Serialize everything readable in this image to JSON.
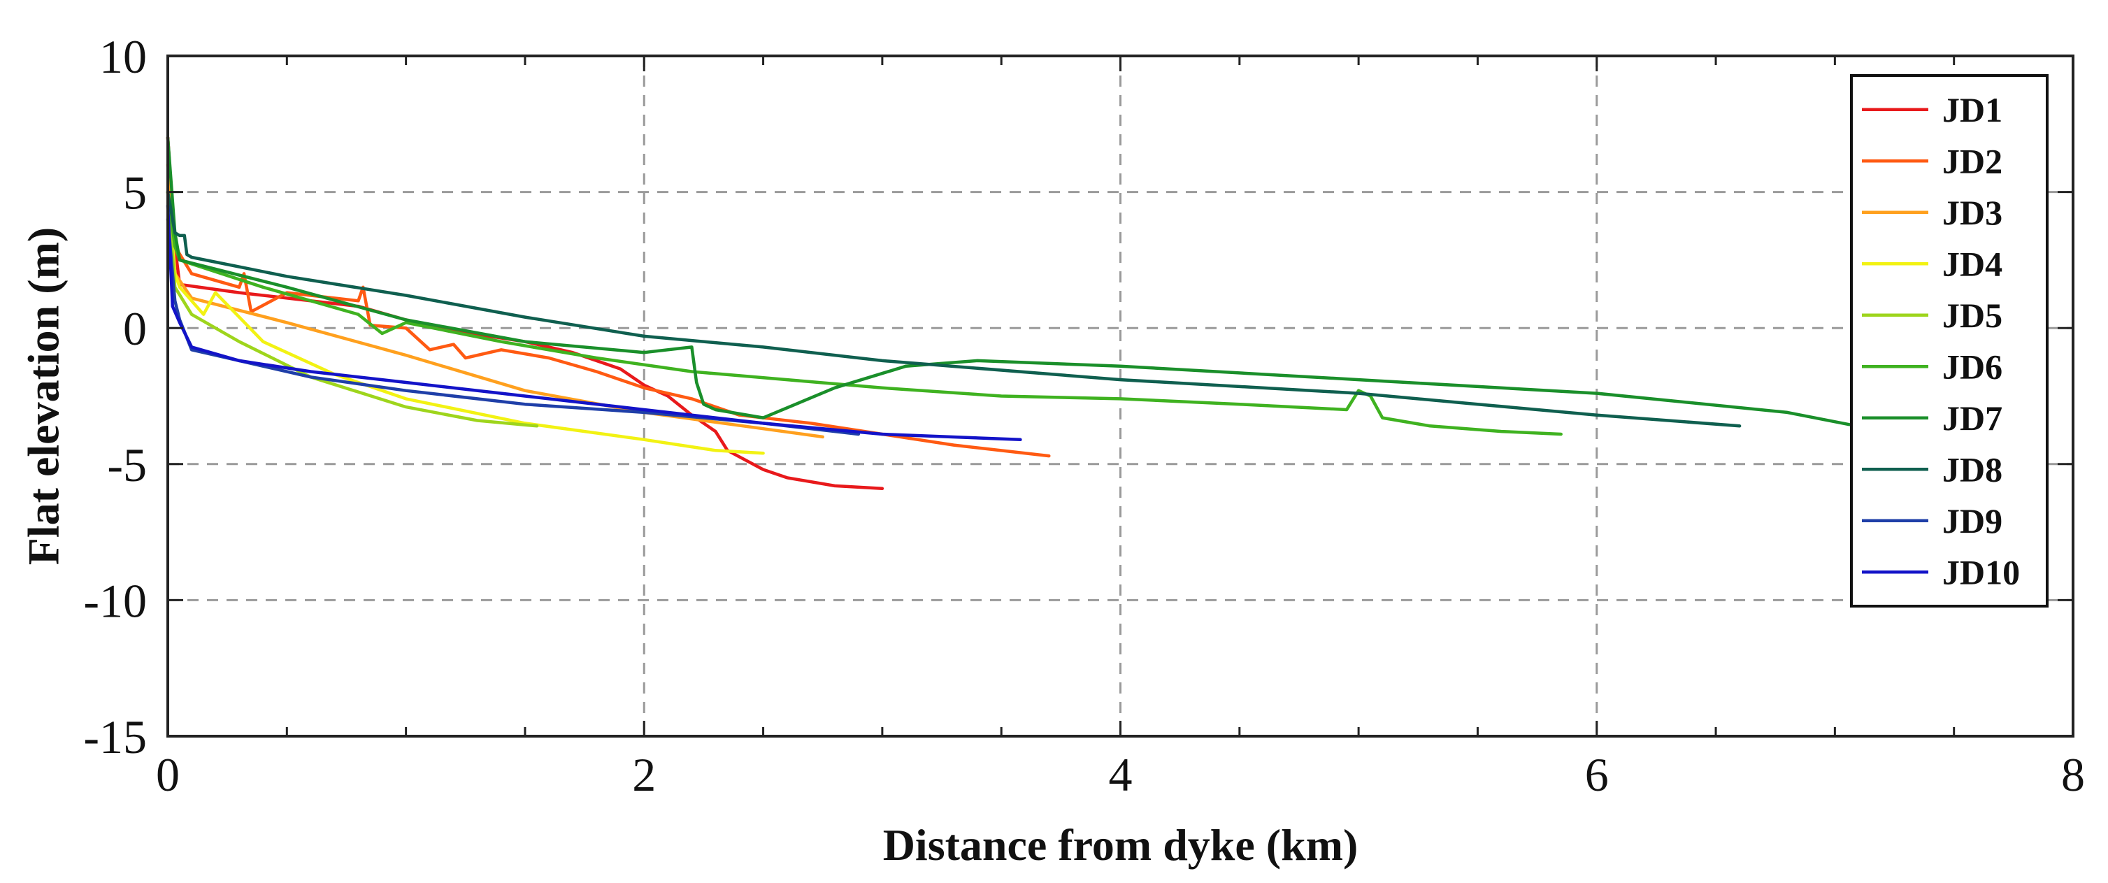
{
  "chart_data": {
    "type": "line",
    "title": "",
    "xlabel": "Distance from dyke (km)",
    "ylabel": "Flat elevation (m)",
    "xlim": [
      0,
      8
    ],
    "ylim": [
      -15,
      10
    ],
    "xticks": [
      0,
      2,
      4,
      6,
      8
    ],
    "xminor_step": 0.5,
    "yticks": [
      10,
      5,
      0,
      -5,
      -10,
      -15
    ],
    "grid": true,
    "legend_position": "top-right",
    "series": [
      {
        "name": "JD1",
        "color": "#e8191b",
        "x": [
          0,
          0.03,
          0.05,
          0.3,
          0.8,
          1.0,
          1.2,
          1.5,
          1.7,
          1.9,
          2.0,
          2.1,
          2.2,
          2.3,
          2.35,
          2.5,
          2.6,
          2.8,
          3.0
        ],
        "y": [
          7,
          3,
          1.6,
          1.3,
          0.8,
          0.3,
          -0.1,
          -0.5,
          -0.9,
          -1.5,
          -2.1,
          -2.5,
          -3.2,
          -3.8,
          -4.5,
          -5.2,
          -5.5,
          -5.8,
          -5.9
        ]
      },
      {
        "name": "JD2",
        "color": "#ff5a12",
        "x": [
          0,
          0.03,
          0.1,
          0.3,
          0.32,
          0.35,
          0.5,
          0.8,
          0.82,
          0.85,
          1.0,
          1.1,
          1.2,
          1.25,
          1.4,
          1.6,
          1.8,
          2.0,
          2.2,
          2.4,
          2.7,
          3.0,
          3.3,
          3.7
        ],
        "y": [
          7,
          3,
          2.0,
          1.5,
          2.0,
          0.6,
          1.3,
          1.0,
          1.5,
          0.1,
          0.0,
          -0.8,
          -0.6,
          -1.1,
          -0.8,
          -1.1,
          -1.6,
          -2.2,
          -2.6,
          -3.2,
          -3.5,
          -3.9,
          -4.3,
          -4.7
        ]
      },
      {
        "name": "JD3",
        "color": "#ffa01e",
        "x": [
          0,
          0.03,
          0.1,
          0.5,
          1.0,
          1.5,
          2.0,
          2.5,
          2.75
        ],
        "y": [
          6,
          2,
          1.1,
          0.2,
          -1.0,
          -2.3,
          -3.1,
          -3.7,
          -4.0
        ]
      },
      {
        "name": "JD4",
        "color": "#f2f213",
        "x": [
          0,
          0.03,
          0.05,
          0.1,
          0.15,
          0.2,
          0.4,
          0.7,
          1.0,
          1.5,
          2.0,
          2.3,
          2.5
        ],
        "y": [
          5,
          2,
          1.5,
          1.0,
          0.5,
          1.3,
          -0.5,
          -1.7,
          -2.6,
          -3.5,
          -4.1,
          -4.5,
          -4.6
        ]
      },
      {
        "name": "JD5",
        "color": "#9ed51c",
        "x": [
          0,
          0.03,
          0.1,
          0.3,
          0.6,
          1.0,
          1.3,
          1.55
        ],
        "y": [
          5,
          1.5,
          0.5,
          -0.5,
          -1.8,
          -2.9,
          -3.4,
          -3.6
        ]
      },
      {
        "name": "JD6",
        "color": "#3fb220",
        "x": [
          0,
          0.03,
          0.05,
          0.4,
          0.8,
          0.9,
          1.0,
          1.4,
          1.8,
          2.2,
          2.6,
          3.0,
          3.5,
          4.0,
          4.5,
          4.95,
          5.0,
          5.05,
          5.1,
          5.3,
          5.6,
          5.85
        ],
        "y": [
          5,
          3,
          2.5,
          1.5,
          0.5,
          -0.2,
          0.2,
          -0.5,
          -1.1,
          -1.6,
          -1.9,
          -2.2,
          -2.5,
          -2.6,
          -2.8,
          -3.0,
          -2.3,
          -2.5,
          -3.3,
          -3.6,
          -3.8,
          -3.9
        ]
      },
      {
        "name": "JD7",
        "color": "#1a8f2a",
        "x": [
          0,
          0.03,
          0.05,
          0.5,
          1.0,
          1.5,
          2.0,
          2.2,
          2.22,
          2.25,
          2.3,
          2.5,
          2.8,
          3.1,
          3.4,
          4.0,
          5.0,
          6.0,
          6.8,
          7.15
        ],
        "y": [
          7,
          3.5,
          2.5,
          1.5,
          0.3,
          -0.5,
          -0.9,
          -0.7,
          -2.0,
          -2.8,
          -3.0,
          -3.3,
          -2.2,
          -1.4,
          -1.2,
          -1.4,
          -1.9,
          -2.4,
          -3.1,
          -3.7
        ]
      },
      {
        "name": "JD8",
        "color": "#0f5f4f",
        "x": [
          0,
          0.03,
          0.05,
          0.07,
          0.08,
          0.1,
          0.5,
          1.0,
          1.5,
          2.0,
          2.5,
          3.0,
          4.0,
          5.0,
          5.5,
          6.0,
          6.6
        ],
        "y": [
          5,
          3.5,
          3.4,
          3.4,
          2.7,
          2.6,
          1.9,
          1.2,
          0.4,
          -0.3,
          -0.7,
          -1.2,
          -1.9,
          -2.4,
          -2.8,
          -3.2,
          -3.6
        ]
      },
      {
        "name": "JD9",
        "color": "#1f3fa8",
        "x": [
          0,
          0.03,
          0.05,
          0.1,
          0.3,
          0.6,
          1.0,
          1.5,
          2.0,
          2.5,
          2.9
        ],
        "y": [
          4,
          1.0,
          0.3,
          -0.8,
          -1.2,
          -1.8,
          -2.3,
          -2.8,
          -3.1,
          -3.5,
          -3.9
        ]
      },
      {
        "name": "JD10",
        "color": "#1313c8",
        "x": [
          0,
          0.02,
          0.05,
          0.1,
          0.3,
          0.6,
          1.0,
          1.5,
          2.0,
          2.5,
          3.0,
          3.58
        ],
        "y": [
          4.5,
          0.8,
          0.2,
          -0.7,
          -1.2,
          -1.6,
          -2.0,
          -2.5,
          -3.0,
          -3.5,
          -3.9,
          -4.1
        ]
      }
    ]
  }
}
